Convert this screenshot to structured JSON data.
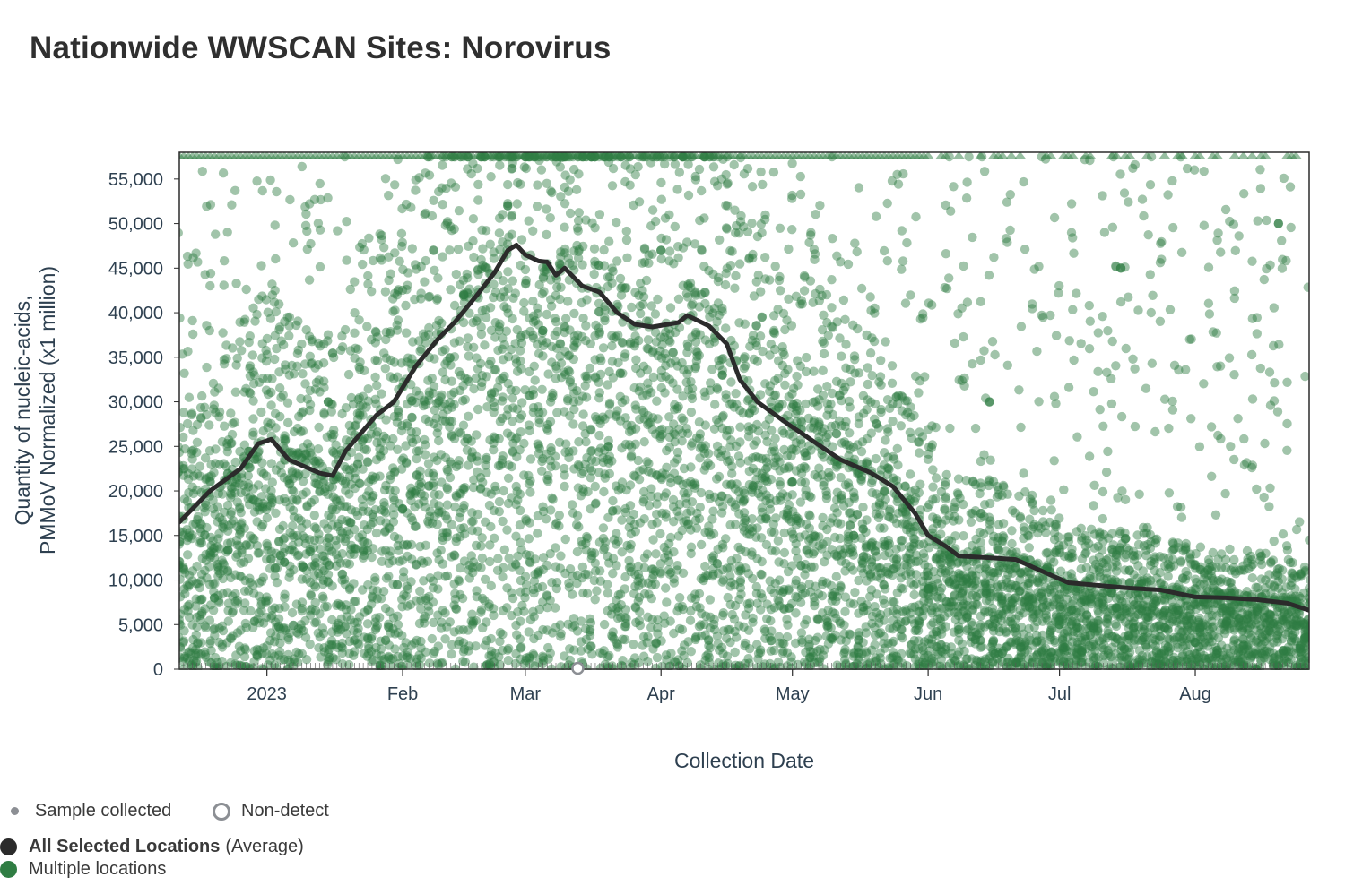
{
  "header": {
    "title": "Nationwide WWSCAN Sites: Norovirus"
  },
  "colors": {
    "points": "#2f7d43",
    "average_line": "#2b2b2b",
    "sample_dot": "#8c8f94"
  },
  "legend": {
    "sample_collected": "Sample collected",
    "non_detect": "Non-detect",
    "all_selected_bold": "All Selected Locations",
    "all_selected_suffix": "(Average)",
    "multiple_locations": "Multiple locations"
  },
  "chart_data": {
    "type": "scatter",
    "title": "Nationwide WWSCAN Sites: Norovirus",
    "xlabel": "Collection Date",
    "ylabel": "Quantity of nucleic-acids, PMMoV Normalized (x1 million)",
    "ylabel_lines": [
      "Quantity of nucleic-acids,",
      "PMMoV Normalized (x1 million)"
    ],
    "xlim": [
      "2022-12-12",
      "2023-08-27"
    ],
    "ylim": [
      0,
      58000
    ],
    "y_ticks": [
      0,
      5000,
      10000,
      15000,
      20000,
      25000,
      30000,
      35000,
      40000,
      45000,
      50000,
      55000
    ],
    "y_tick_labels": [
      "0",
      "5,000",
      "10,000",
      "15,000",
      "20,000",
      "25,000",
      "30,000",
      "35,000",
      "40,000",
      "45,000",
      "50,000",
      "55,000"
    ],
    "x_ticks": [
      {
        "date": "2023-01-01",
        "label": "2023"
      },
      {
        "date": "2023-02-01",
        "label": "Feb"
      },
      {
        "date": "2023-03-01",
        "label": "Mar"
      },
      {
        "date": "2023-04-01",
        "label": "Apr"
      },
      {
        "date": "2023-05-01",
        "label": "May"
      },
      {
        "date": "2023-06-01",
        "label": "Jun"
      },
      {
        "date": "2023-07-01",
        "label": "Jul"
      },
      {
        "date": "2023-08-01",
        "label": "Aug"
      }
    ],
    "series": [
      {
        "name": "All Selected Locations (Average)",
        "type": "line",
        "color": "#2b2b2b",
        "points": [
          [
            "2022-12-12",
            16500
          ],
          [
            "2022-12-19",
            20000
          ],
          [
            "2022-12-26",
            22500
          ],
          [
            "2022-12-30",
            25300
          ],
          [
            "2023-01-02",
            25800
          ],
          [
            "2023-01-06",
            23500
          ],
          [
            "2023-01-13",
            22000
          ],
          [
            "2023-01-16",
            21700
          ],
          [
            "2023-01-19",
            24500
          ],
          [
            "2023-01-26",
            28500
          ],
          [
            "2023-01-30",
            30000
          ],
          [
            "2023-02-04",
            34000
          ],
          [
            "2023-02-09",
            37000
          ],
          [
            "2023-02-13",
            39000
          ],
          [
            "2023-02-18",
            42000
          ],
          [
            "2023-02-22",
            44500
          ],
          [
            "2023-02-25",
            47000
          ],
          [
            "2023-02-27",
            47600
          ],
          [
            "2023-03-01",
            46500
          ],
          [
            "2023-03-04",
            45800
          ],
          [
            "2023-03-06",
            45700
          ],
          [
            "2023-03-08",
            44200
          ],
          [
            "2023-03-10",
            45000
          ],
          [
            "2023-03-14",
            43000
          ],
          [
            "2023-03-18",
            42300
          ],
          [
            "2023-03-22",
            40000
          ],
          [
            "2023-03-26",
            38700
          ],
          [
            "2023-03-30",
            38400
          ],
          [
            "2023-04-05",
            38900
          ],
          [
            "2023-04-07",
            39700
          ],
          [
            "2023-04-12",
            38500
          ],
          [
            "2023-04-16",
            36500
          ],
          [
            "2023-04-19",
            32500
          ],
          [
            "2023-04-23",
            30000
          ],
          [
            "2023-04-30",
            27500
          ],
          [
            "2023-05-06",
            25500
          ],
          [
            "2023-05-12",
            23500
          ],
          [
            "2023-05-19",
            22000
          ],
          [
            "2023-05-24",
            20500
          ],
          [
            "2023-05-29",
            17500
          ],
          [
            "2023-06-01",
            15000
          ],
          [
            "2023-06-05",
            13800
          ],
          [
            "2023-06-08",
            12700
          ],
          [
            "2023-06-15",
            12500
          ],
          [
            "2023-06-21",
            12300
          ],
          [
            "2023-06-27",
            11000
          ],
          [
            "2023-07-03",
            9700
          ],
          [
            "2023-07-10",
            9400
          ],
          [
            "2023-07-17",
            9100
          ],
          [
            "2023-07-24",
            8900
          ],
          [
            "2023-08-01",
            8100
          ],
          [
            "2023-08-08",
            8000
          ],
          [
            "2023-08-15",
            7800
          ],
          [
            "2023-08-22",
            7400
          ],
          [
            "2023-08-27",
            6600
          ]
        ]
      },
      {
        "name": "Multiple locations",
        "type": "scatter",
        "color": "#2f7d43",
        "density_note": "thousands of individual samples; dense near 0-15,000, spread up to the axis maximum",
        "points": [
          [
            "2022-12-20",
            8000
          ],
          [
            "2023-01-05",
            12000
          ],
          [
            "2023-01-15",
            30000
          ],
          [
            "2023-02-01",
            18000
          ],
          [
            "2023-02-15",
            42000
          ],
          [
            "2023-02-25",
            52000
          ],
          [
            "2023-03-05",
            38000
          ],
          [
            "2023-03-20",
            25000
          ],
          [
            "2023-04-01",
            47000
          ],
          [
            "2023-04-15",
            33000
          ],
          [
            "2023-05-01",
            21000
          ],
          [
            "2023-05-15",
            15000
          ],
          [
            "2023-06-01",
            9000
          ],
          [
            "2023-06-15",
            30000
          ],
          [
            "2023-07-01",
            5000
          ],
          [
            "2023-07-15",
            45000
          ],
          [
            "2023-08-01",
            3000
          ],
          [
            "2023-08-20",
            50000
          ]
        ]
      }
    ],
    "non_detect_points": [
      [
        "2023-03-13",
        0
      ]
    ],
    "grid": false,
    "legend_position": "bottom-left"
  }
}
